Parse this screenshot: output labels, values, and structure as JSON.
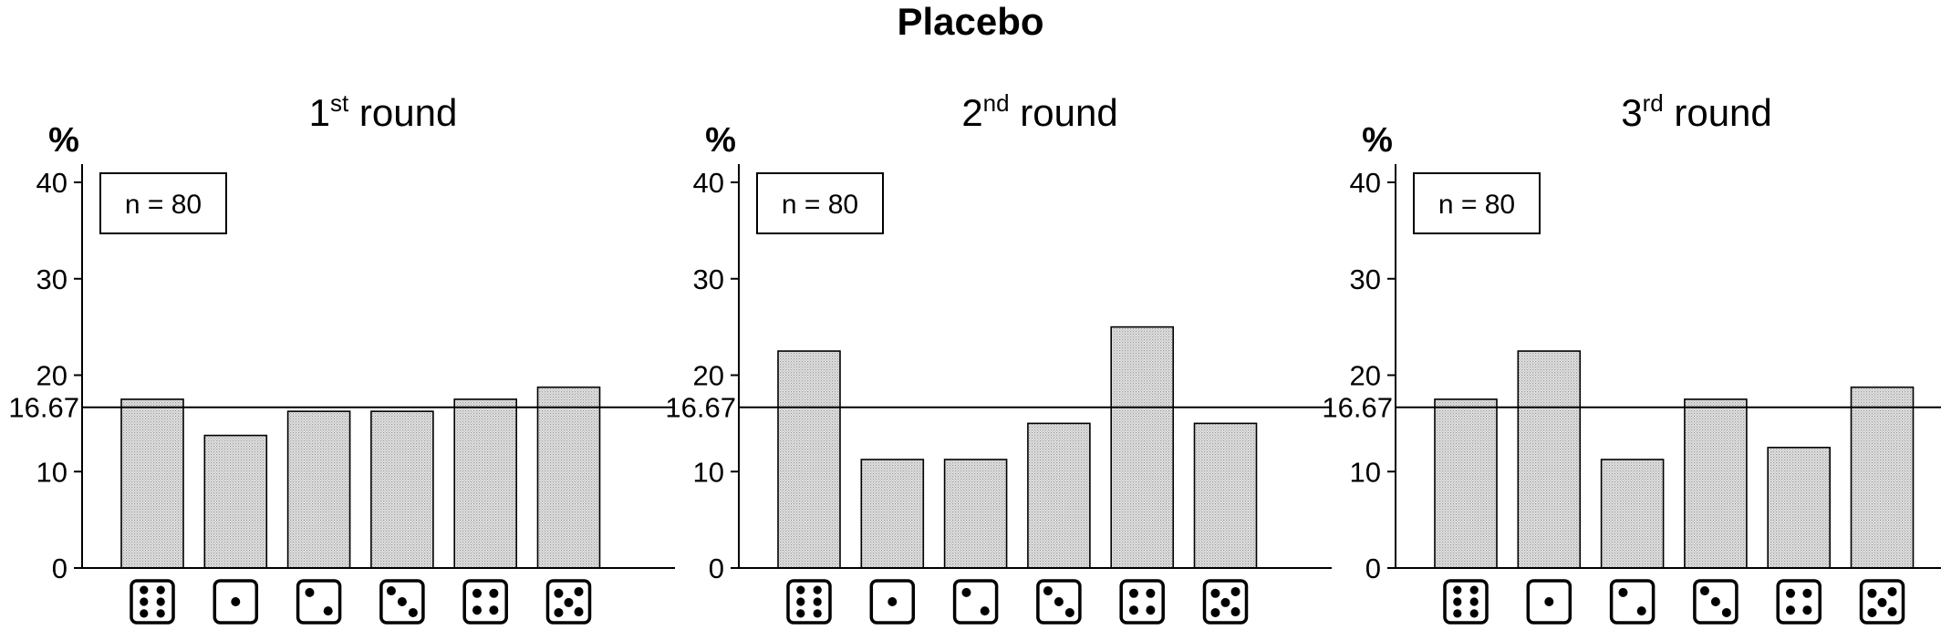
{
  "title": "Placebo",
  "chart_data": [
    {
      "type": "bar",
      "title_base": "1",
      "title_sup": "st",
      "title_rest": " round",
      "unit_label": "%",
      "n_label": "n = 80",
      "categories": [
        6,
        1,
        2,
        3,
        4,
        5
      ],
      "values": [
        17.5,
        13.75,
        16.25,
        16.25,
        17.5,
        18.75
      ],
      "yticks": [
        "0",
        "10",
        "20",
        "30",
        "40"
      ],
      "ylim": [
        0,
        40
      ],
      "reference_line": {
        "value": 16.67,
        "label": "16.67"
      }
    },
    {
      "type": "bar",
      "title_base": "2",
      "title_sup": "nd",
      "title_rest": " round",
      "unit_label": "%",
      "n_label": "n = 80",
      "categories": [
        6,
        1,
        2,
        3,
        4,
        5
      ],
      "values": [
        22.5,
        11.25,
        11.25,
        15.0,
        25.0,
        15.0
      ],
      "yticks": [
        "0",
        "10",
        "20",
        "30",
        "40"
      ],
      "ylim": [
        0,
        40
      ],
      "reference_line": {
        "value": 16.67,
        "label": "16.67"
      }
    },
    {
      "type": "bar",
      "title_base": "3",
      "title_sup": "rd",
      "title_rest": " round",
      "unit_label": "%",
      "n_label": "n = 80",
      "categories": [
        6,
        1,
        2,
        3,
        4,
        5
      ],
      "values": [
        17.5,
        22.5,
        11.25,
        17.5,
        12.5,
        18.75
      ],
      "yticks": [
        "0",
        "10",
        "20",
        "30",
        "40"
      ],
      "ylim": [
        0,
        40
      ],
      "reference_line": {
        "value": 16.67,
        "label": "16.67"
      }
    }
  ]
}
